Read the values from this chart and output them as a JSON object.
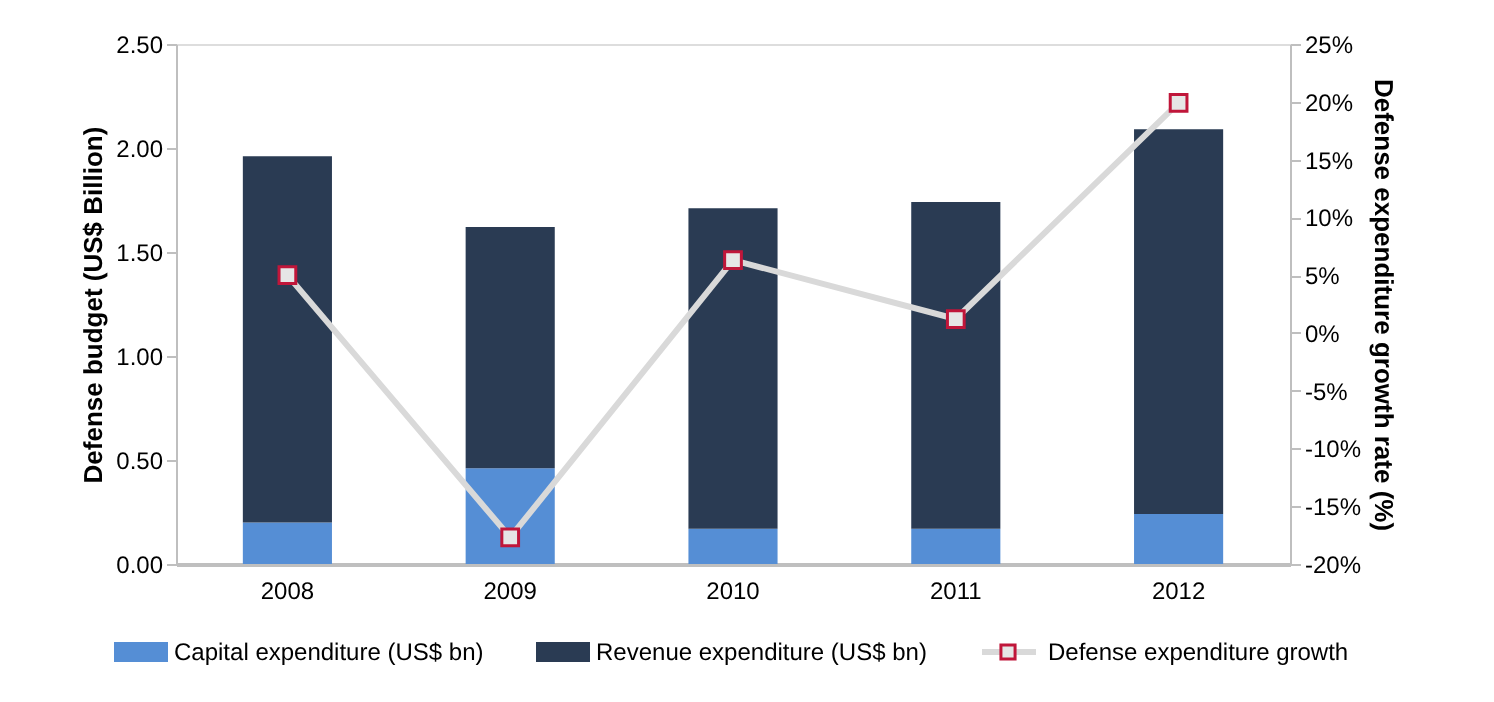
{
  "chart_data": {
    "type": "bar",
    "stacked": true,
    "categories": [
      "2008",
      "2009",
      "2010",
      "2011",
      "2012"
    ],
    "ylabel": "Defense budget (US$ Billion)",
    "y2label": "Defense expenditure growth rate (%)",
    "series": [
      {
        "name": "Capital expenditure (US$ bn)",
        "color": "#558ed5",
        "values": [
          0.2,
          0.46,
          0.17,
          0.17,
          0.24
        ]
      },
      {
        "name": "Revenue expenditure (US$ bn)",
        "color": "#2a3b53",
        "values": [
          1.76,
          1.16,
          1.54,
          1.57,
          1.85
        ]
      },
      {
        "name": "Defense expenditure growth",
        "type": "line",
        "axis": "y2",
        "color": "#d9d9d9",
        "marker": "square",
        "values": [
          5.0,
          -17.7,
          6.3,
          1.2,
          19.9
        ]
      }
    ],
    "ylim": [
      0,
      2.5
    ],
    "yticks": [
      {
        "value": 0,
        "label": "0.00"
      },
      {
        "value": 0.5,
        "label": "0.50"
      },
      {
        "value": 1,
        "label": "1.00"
      },
      {
        "value": 1.5,
        "label": "1.50"
      },
      {
        "value": 2,
        "label": "2.00"
      },
      {
        "value": 2.5,
        "label": "2.50"
      }
    ],
    "y2lim": [
      -20,
      25
    ],
    "y2ticks": [
      {
        "value": -20,
        "label": "-20%"
      },
      {
        "value": -15,
        "label": "-15%"
      },
      {
        "value": -10,
        "label": "-10%"
      },
      {
        "value": -5,
        "label": "-5%"
      },
      {
        "value": 0,
        "label": "0%"
      },
      {
        "value": 5,
        "label": "5%"
      },
      {
        "value": 10,
        "label": "10%"
      },
      {
        "value": 15,
        "label": "15%"
      },
      {
        "value": 20,
        "label": "20%"
      },
      {
        "value": 25,
        "label": "25%"
      }
    ],
    "grid": false,
    "legend": "bottom",
    "line_style": "solid"
  }
}
